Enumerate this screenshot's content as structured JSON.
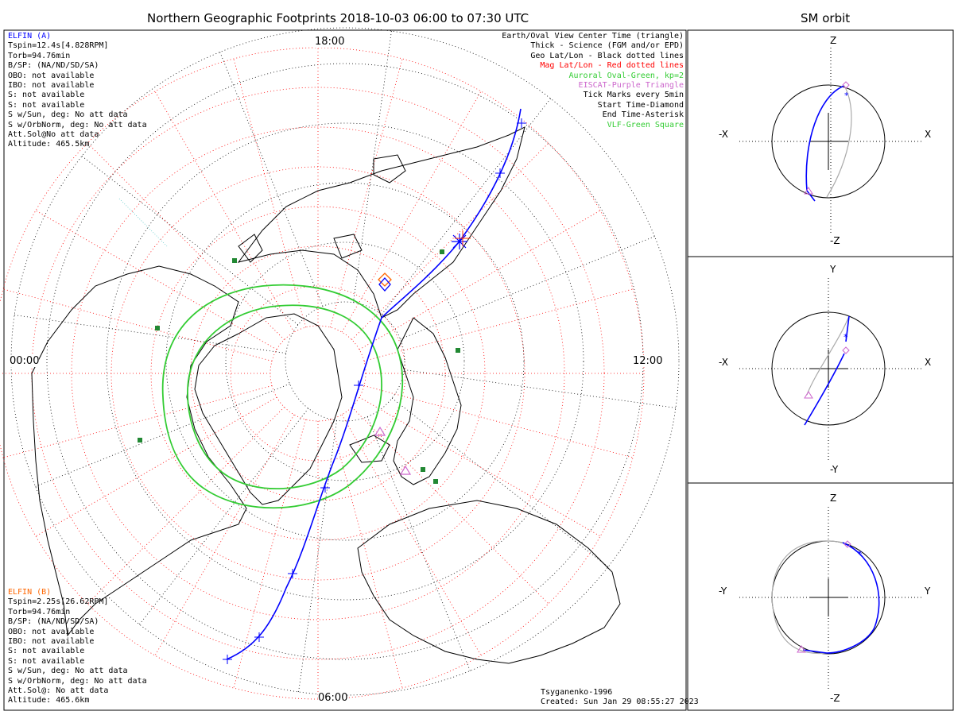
{
  "header": {
    "title": "Northern Geographic Footprints 2018-10-03 06:00 to 07:30 UTC",
    "orbit_title": "SM orbit"
  },
  "map": {
    "clock_labels": {
      "top": "18:00",
      "left": "00:00",
      "right": "12:00",
      "bottom": "06:00"
    },
    "colors": {
      "geo_grid": "#000000",
      "mag_grid": "#ff0000",
      "auroral_oval": "#33cc33",
      "track": "#0000ff",
      "eiscat": "#cc66cc",
      "vlf": "#228833"
    }
  },
  "elfin_a": {
    "name": "ELFIN (A)",
    "color": "#0000ff",
    "lines": [
      "Tspin=12.4s[4.828RPM]",
      "Torb=94.76min",
      "B/SP: (NA/ND/SD/SA)",
      "OBO: not available",
      "IBO: not available",
      "S: not available",
      "S: not available",
      "S w/Sun, deg: No att data",
      "S w/OrbNorm, deg: No att data",
      "Att.Sol@No att data",
      "Altitude: 465.5km"
    ]
  },
  "elfin_b": {
    "name": "ELFIN (B)",
    "color": "#ff6600",
    "lines": [
      "Tspin=2.25s[26.62RPM]",
      "Torb=94.76min",
      "B/SP: (NA/ND/SD/SA)",
      "OBO: not available",
      "IBO: not available",
      "S: not available",
      "S: not available",
      "S w/Sun, deg: No att data",
      "S w/OrbNorm, deg: No att data",
      "Att.Sol@: No att data",
      "Altitude: 465.6km"
    ]
  },
  "legend": [
    {
      "text": "Earth/Oval View Center Time (triangle)",
      "color": "#000000"
    },
    {
      "text": "Thick - Science (FGM and/or EPD)",
      "color": "#000000"
    },
    {
      "text": "Geo Lat/Lon - Black dotted lines",
      "color": "#000000"
    },
    {
      "text": "Mag Lat/Lon - Red dotted lines",
      "color": "#ff0000"
    },
    {
      "text": "Auroral Oval-Green, kp=2",
      "color": "#33cc33"
    },
    {
      "text": "EISCAT-Purple Triangle",
      "color": "#cc66cc"
    },
    {
      "text": "Tick Marks every 5min",
      "color": "#000000"
    },
    {
      "text": "Start Time-Diamond",
      "color": "#000000"
    },
    {
      "text": "End Time-Asterisk",
      "color": "#000000"
    },
    {
      "text": "VLF-Green Square",
      "color": "#33cc33"
    }
  ],
  "footer": {
    "model": "Tsyganenko-1996",
    "created": "Created: Sun Jan 29 08:55:27 2023"
  },
  "orbit_panels": [
    {
      "name": "xz",
      "top": "Z",
      "bottom": "-Z",
      "left": "-X",
      "right": "X"
    },
    {
      "name": "xy",
      "top": "Y",
      "bottom": "-Y",
      "left": "-X",
      "right": "X"
    },
    {
      "name": "yz",
      "top": "Z",
      "bottom": "-Z",
      "left": "-Y",
      "right": "Y"
    }
  ]
}
